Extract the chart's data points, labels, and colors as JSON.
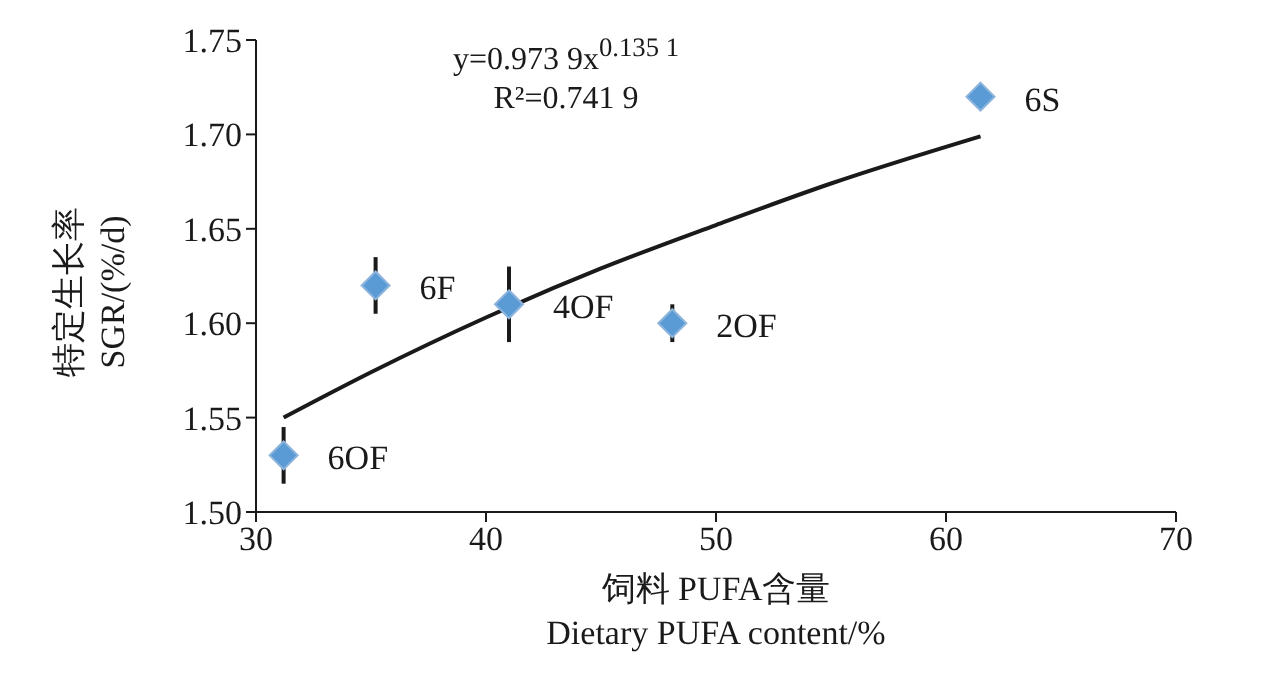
{
  "chart_data": {
    "type": "scatter",
    "xlabel": "饲料 PUFA含量\nDietary PUFA content/%",
    "ylabel": "特定生长率\nSGR/(%/d)",
    "xlim": [
      30,
      70
    ],
    "xticks": [
      30,
      40,
      50,
      60,
      70
    ],
    "ylim": [
      1.5,
      1.75
    ],
    "yticks": [
      {
        "value": 1.5,
        "label": "1.50"
      },
      {
        "value": 1.55,
        "label": "1.55"
      },
      {
        "value": 1.6,
        "label": "1.60"
      },
      {
        "value": 1.65,
        "label": "1.65"
      },
      {
        "value": 1.7,
        "label": "1.70"
      },
      {
        "value": 1.75,
        "label": "1.75"
      }
    ],
    "grid": false,
    "legend": false,
    "marker": "diamond",
    "series": [
      {
        "color": "#5b9bd5",
        "x": [
          31.2,
          35.2,
          41,
          48.1,
          61.5
        ],
        "values": [
          1.53,
          1.62,
          1.61,
          1.6,
          1.72
        ],
        "errors": [
          0.015,
          0.015,
          0.02,
          0.01,
          null
        ]
      },
      {
        "type": "line",
        "color": "#1a1a1a",
        "marker": "none",
        "line_style": "solid",
        "x": [
          31.2,
          35,
          40,
          45,
          50,
          55,
          61.5
        ],
        "values": [
          1.55,
          1.574,
          1.603,
          1.629,
          1.652,
          1.674,
          1.699
        ]
      }
    ],
    "annotations": [
      {
        "text": "6OF",
        "x": 31.2,
        "y": 1.53
      },
      {
        "text": "6F",
        "x": 35.2,
        "y": 1.62
      },
      {
        "text": "4OF",
        "x": 41,
        "y": 1.61
      },
      {
        "text": "2OF",
        "x": 48.1,
        "y": 1.6
      },
      {
        "text": "6S",
        "x": 61.5,
        "y": 1.72
      },
      "y=0.973 9x$^{0.135 1}$",
      "R²=0.741 9"
    ]
  }
}
